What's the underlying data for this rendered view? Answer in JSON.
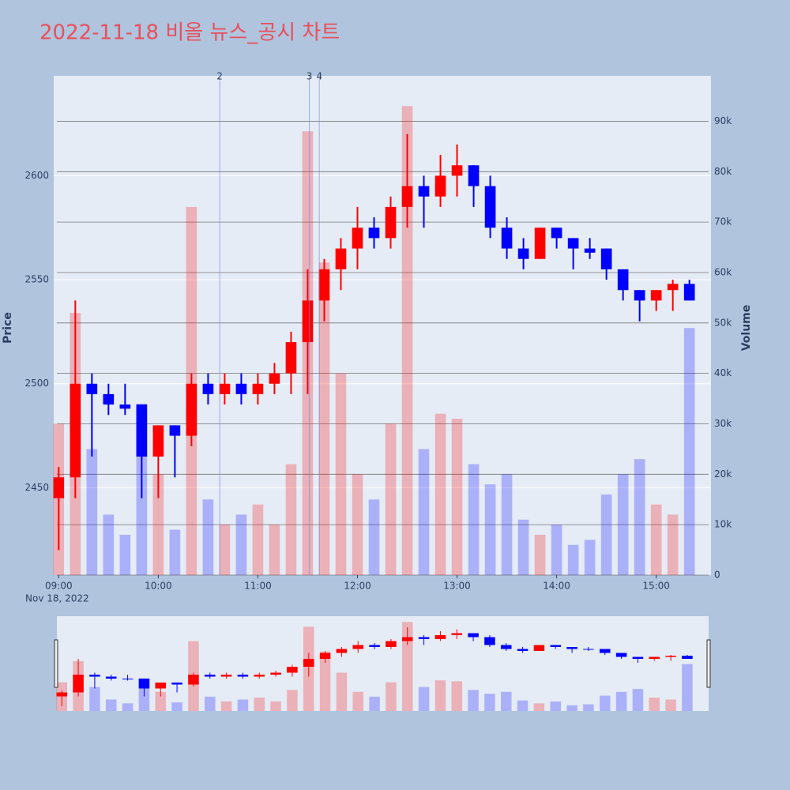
{
  "chart_data": {
    "type": "candlestick",
    "title": "2022-11-18 비올 뉴스_공시 차트",
    "x": [
      "09:00",
      "09:10",
      "09:20",
      "09:30",
      "09:40",
      "09:50",
      "10:00",
      "10:10",
      "10:20",
      "10:30",
      "10:40",
      "10:50",
      "11:00",
      "11:10",
      "11:20",
      "11:30",
      "11:40",
      "11:50",
      "12:00",
      "12:10",
      "12:20",
      "12:30",
      "12:40",
      "12:50",
      "13:00",
      "13:10",
      "13:20",
      "13:30",
      "13:40",
      "13:50",
      "14:00",
      "14:10",
      "14:20",
      "14:30",
      "14:40",
      "14:50",
      "15:00",
      "15:10",
      "15:20"
    ],
    "open": [
      2445,
      2455,
      2500,
      2495,
      2490,
      2490,
      2465,
      2480,
      2475,
      2500,
      2495,
      2500,
      2495,
      2500,
      2505,
      2520,
      2540,
      2555,
      2565,
      2575,
      2570,
      2585,
      2595,
      2590,
      2600,
      2605,
      2595,
      2575,
      2565,
      2560,
      2575,
      2570,
      2565,
      2565,
      2555,
      2545,
      2540,
      2545,
      2548
    ],
    "high": [
      2460,
      2540,
      2505,
      2500,
      2500,
      2490,
      2480,
      2480,
      2505,
      2505,
      2505,
      2505,
      2505,
      2510,
      2525,
      2555,
      2560,
      2570,
      2585,
      2580,
      2590,
      2620,
      2600,
      2610,
      2615,
      2605,
      2600,
      2580,
      2570,
      2575,
      2575,
      2570,
      2570,
      2565,
      2555,
      2545,
      2545,
      2550,
      2550
    ],
    "low": [
      2420,
      2445,
      2465,
      2485,
      2485,
      2445,
      2445,
      2455,
      2470,
      2490,
      2490,
      2490,
      2490,
      2495,
      2495,
      2495,
      2530,
      2545,
      2555,
      2565,
      2565,
      2575,
      2575,
      2585,
      2590,
      2585,
      2570,
      2560,
      2555,
      2560,
      2565,
      2555,
      2560,
      2550,
      2540,
      2530,
      2535,
      2535,
      2540
    ],
    "close": [
      2455,
      2500,
      2495,
      2490,
      2488,
      2465,
      2480,
      2475,
      2500,
      2495,
      2500,
      2495,
      2500,
      2505,
      2520,
      2540,
      2555,
      2565,
      2575,
      2570,
      2585,
      2595,
      2590,
      2600,
      2605,
      2595,
      2575,
      2565,
      2560,
      2575,
      2570,
      2565,
      2563,
      2555,
      2545,
      2540,
      2545,
      2548,
      2540
    ],
    "volume": [
      30000,
      52000,
      25000,
      12000,
      8000,
      34000,
      20000,
      9000,
      73000,
      15000,
      10000,
      12000,
      14000,
      10000,
      22000,
      88000,
      62000,
      40000,
      20000,
      15000,
      30000,
      93000,
      25000,
      32000,
      31000,
      22000,
      18000,
      20000,
      11000,
      8000,
      10000,
      6000,
      7000,
      16000,
      20000,
      23000,
      14000,
      12000,
      49000
    ],
    "increasing_color": "#ff0000",
    "decreasing_color": "#0000ff",
    "xlim": [
      "08:57",
      "15:33"
    ],
    "xticks": [
      "09:00",
      "10:00",
      "11:00",
      "12:00",
      "13:00",
      "14:00",
      "15:00"
    ],
    "date_label": "Nov 18, 2022",
    "ylim": [
      2408,
      2648
    ],
    "yticks": [
      2450,
      2500,
      2550,
      2600
    ],
    "y2lim": [
      0,
      99000
    ],
    "y2ticks": [
      0,
      {
        "value": 10000,
        "label": "10k"
      },
      {
        "value": 20000,
        "label": "20k"
      },
      {
        "value": 30000,
        "label": "30k"
      },
      {
        "value": 40000,
        "label": "40k"
      },
      {
        "value": 50000,
        "label": "50k"
      },
      {
        "value": 60000,
        "label": "60k"
      },
      {
        "value": 70000,
        "label": "70k"
      },
      {
        "value": 80000,
        "label": "80k"
      },
      {
        "value": 90000,
        "label": "90k"
      }
    ],
    "ylabel": "Price",
    "y2label": "Volume",
    "annotations": [
      {
        "x": "10:37",
        "label": "2"
      },
      {
        "x": "11:31",
        "label": "3"
      },
      {
        "x": "11:37",
        "label": "4"
      }
    ],
    "grid": true,
    "rangeslider": true
  }
}
